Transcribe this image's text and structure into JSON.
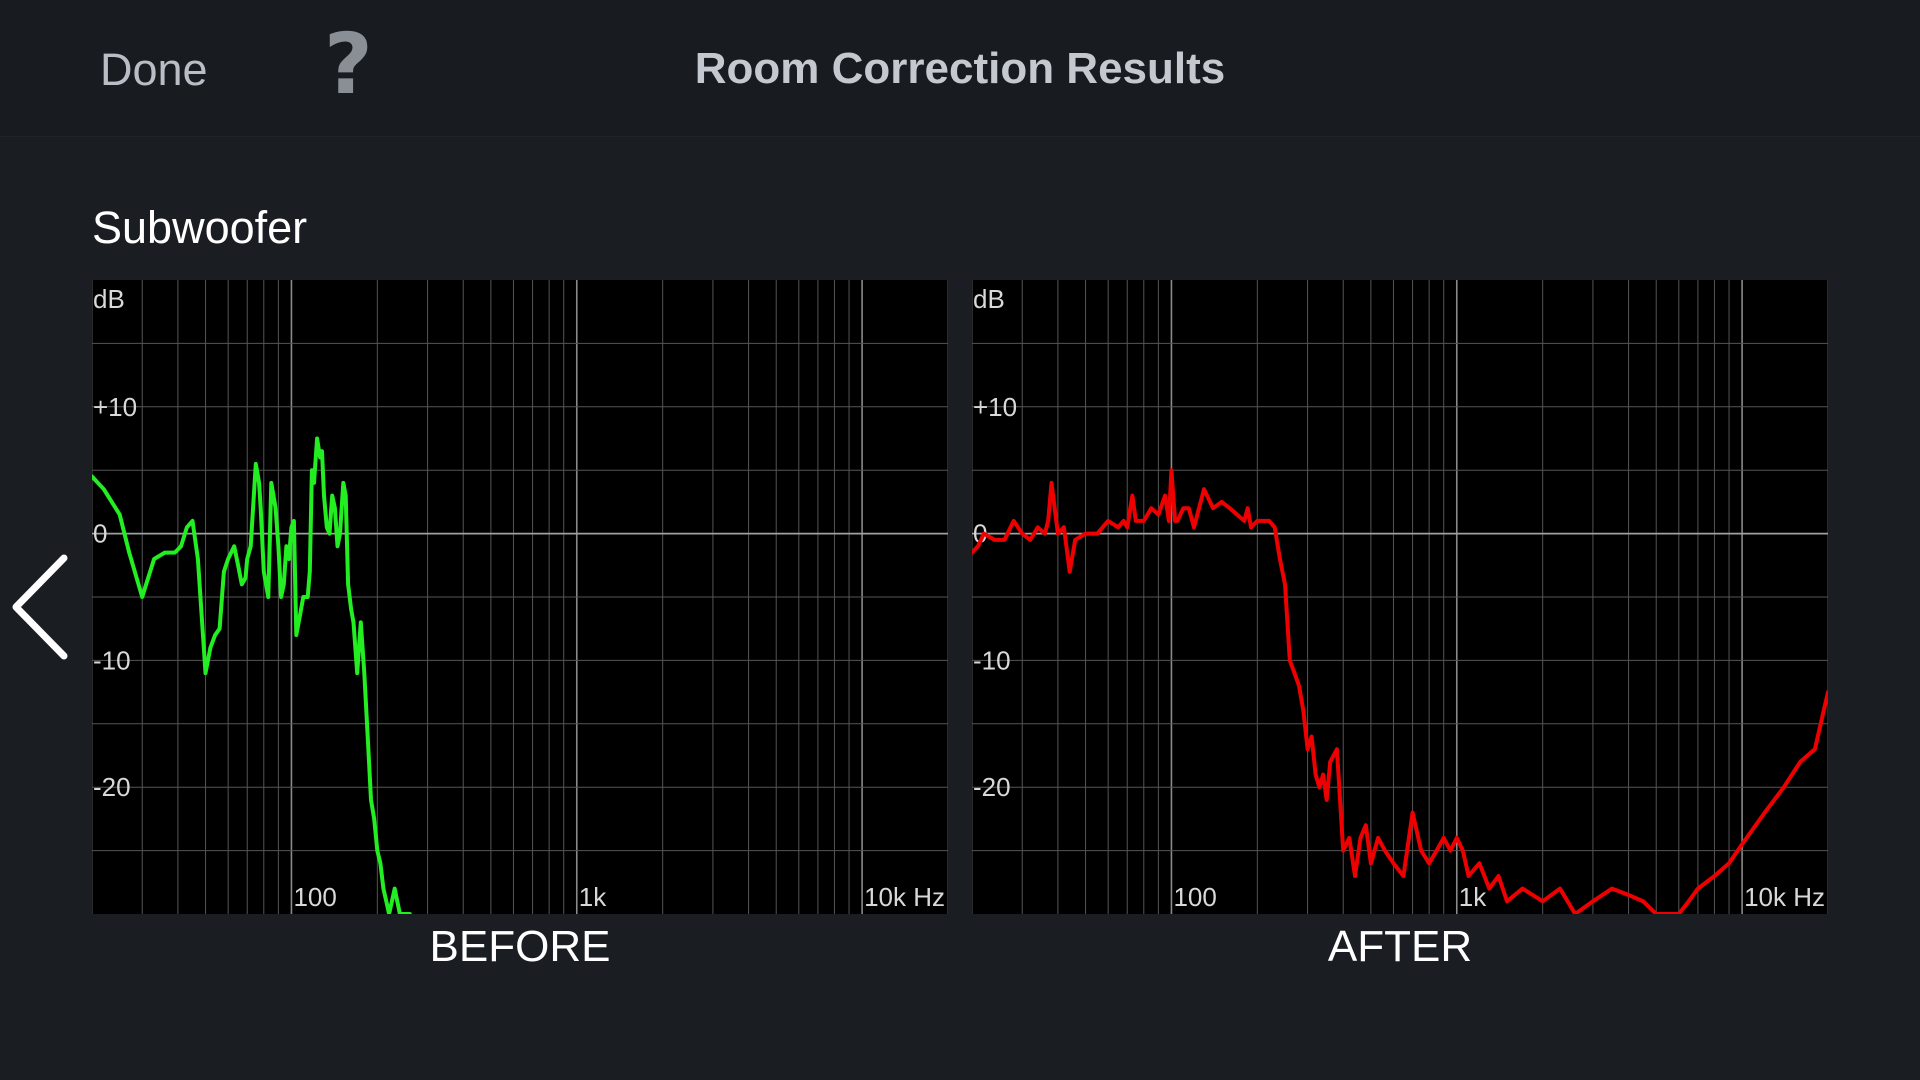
{
  "header": {
    "done_label": "Done",
    "help_label": "?",
    "title": "Room Correction Results"
  },
  "section": {
    "label": "Subwoofer"
  },
  "colors": {
    "background": "#1a1d22",
    "before_curve": "#22ee22",
    "after_curve": "#ee0000",
    "grid": "#555555",
    "plot_background": "#000000"
  },
  "icons": {
    "back": "chevron-left-icon"
  },
  "chart_data": [
    {
      "type": "line",
      "title": "",
      "caption": "BEFORE",
      "ylabel": "dB",
      "xlabel": "",
      "x_scale": "log",
      "xlim": [
        20,
        20000
      ],
      "ylim": [
        -30,
        20
      ],
      "y_ticks": [
        {
          "value": 20,
          "label": "dB"
        },
        {
          "value": 10,
          "label": "+10"
        },
        {
          "value": 0,
          "label": "0"
        },
        {
          "value": -10,
          "label": "-10"
        },
        {
          "value": -20,
          "label": "-20"
        }
      ],
      "x_ticks": [
        {
          "value": 100,
          "label": "100"
        },
        {
          "value": 1000,
          "label": "1k"
        },
        {
          "value": 10000,
          "label": "10k Hz"
        }
      ],
      "grid": true,
      "series": [
        {
          "color": "#22ee22",
          "x": [
            20,
            22,
            25,
            27,
            30,
            33,
            36,
            39,
            41,
            43,
            45,
            47,
            50,
            52,
            54,
            56,
            58,
            60,
            63,
            65,
            67,
            69,
            70,
            72,
            75,
            77,
            78,
            80,
            83,
            85,
            88,
            90,
            92,
            94,
            96,
            98,
            100,
            102,
            104,
            106,
            110,
            114,
            116,
            118,
            120,
            123,
            126,
            128,
            130,
            133,
            136,
            139,
            142,
            145,
            148,
            152,
            155,
            158,
            162,
            165,
            170,
            175,
            180,
            185,
            190,
            195,
            200,
            205,
            210,
            215,
            220,
            225,
            230,
            235,
            240,
            250,
            260
          ],
          "y": [
            4.5,
            3.5,
            1.5,
            -1.5,
            -5,
            -2,
            -1.5,
            -1.5,
            -1,
            0.5,
            1,
            -2,
            -11,
            -9,
            -8,
            -7.5,
            -3,
            -2,
            -1,
            -2.5,
            -4,
            -3.5,
            -2,
            -1,
            5.5,
            4,
            2,
            -3,
            -5,
            4,
            2,
            -1,
            -5,
            -4,
            -1,
            -2,
            0.5,
            1,
            -8,
            -7,
            -5,
            -5,
            -3,
            5,
            4,
            7.5,
            6,
            6.5,
            3,
            0.5,
            0,
            3,
            2,
            -1,
            0,
            4,
            3,
            -4,
            -6,
            -7,
            -11,
            -7,
            -11,
            -16,
            -21,
            -22.5,
            -25,
            -26,
            -28,
            -29,
            -30,
            -29,
            -28,
            -29,
            -30,
            -30,
            -30
          ]
        }
      ]
    },
    {
      "type": "line",
      "title": "",
      "caption": "AFTER",
      "ylabel": "dB",
      "xlabel": "",
      "x_scale": "log",
      "xlim": [
        20,
        20000
      ],
      "ylim": [
        -30,
        20
      ],
      "y_ticks": [
        {
          "value": 20,
          "label": "dB"
        },
        {
          "value": 10,
          "label": "+10"
        },
        {
          "value": 0,
          "label": "0"
        },
        {
          "value": -10,
          "label": "-10"
        },
        {
          "value": -20,
          "label": "-20"
        }
      ],
      "x_ticks": [
        {
          "value": 100,
          "label": "100"
        },
        {
          "value": 1000,
          "label": "1k"
        },
        {
          "value": 10000,
          "label": "10k Hz"
        }
      ],
      "grid": true,
      "series": [
        {
          "color": "#ee0000",
          "x": [
            20,
            21,
            22,
            24,
            26,
            28,
            30,
            32,
            34,
            36,
            37,
            38,
            40,
            42,
            44,
            46,
            50,
            55,
            60,
            65,
            68,
            70,
            73,
            75,
            80,
            85,
            90,
            95,
            98,
            100,
            103,
            105,
            110,
            115,
            120,
            130,
            140,
            150,
            160,
            170,
            180,
            185,
            190,
            200,
            210,
            220,
            230,
            240,
            250,
            260,
            270,
            280,
            290,
            300,
            310,
            320,
            330,
            340,
            350,
            360,
            380,
            400,
            420,
            440,
            460,
            480,
            500,
            530,
            560,
            600,
            650,
            700,
            750,
            800,
            850,
            900,
            950,
            1000,
            1050,
            1100,
            1200,
            1300,
            1400,
            1500,
            1700,
            2000,
            2300,
            2600,
            3000,
            3500,
            4000,
            4500,
            5000,
            5500,
            6000,
            6500,
            7000,
            8000,
            9000,
            10000,
            12000,
            14000,
            16000,
            18000,
            20000
          ],
          "y": [
            -1.5,
            -1,
            0,
            -0.5,
            -0.5,
            1,
            0,
            -0.5,
            0.5,
            0,
            1,
            4,
            0,
            0.5,
            -3,
            -0.5,
            0,
            0,
            1,
            0.5,
            1,
            0.5,
            3,
            1,
            1,
            2,
            1.5,
            3,
            1,
            5,
            1,
            1,
            2,
            2,
            0.5,
            3.5,
            2,
            2.5,
            2,
            1.5,
            1,
            2,
            0.5,
            1,
            1,
            1,
            0.5,
            -2,
            -4,
            -10,
            -11,
            -12,
            -14,
            -17,
            -16,
            -19,
            -20,
            -19,
            -21,
            -18,
            -17,
            -25,
            -24,
            -27,
            -24,
            -23,
            -26,
            -24,
            -25,
            -26,
            -27,
            -22,
            -25,
            -26,
            -25,
            -24,
            -25,
            -24,
            -25,
            -27,
            -26,
            -28,
            -27,
            -29,
            -28,
            -29,
            -28,
            -30,
            -29,
            -28,
            -28.5,
            -29,
            -30,
            -30,
            -30,
            -29,
            -28,
            -27,
            -26,
            -24.5,
            -22,
            -20,
            -18,
            -17,
            -12.5
          ]
        }
      ]
    }
  ]
}
